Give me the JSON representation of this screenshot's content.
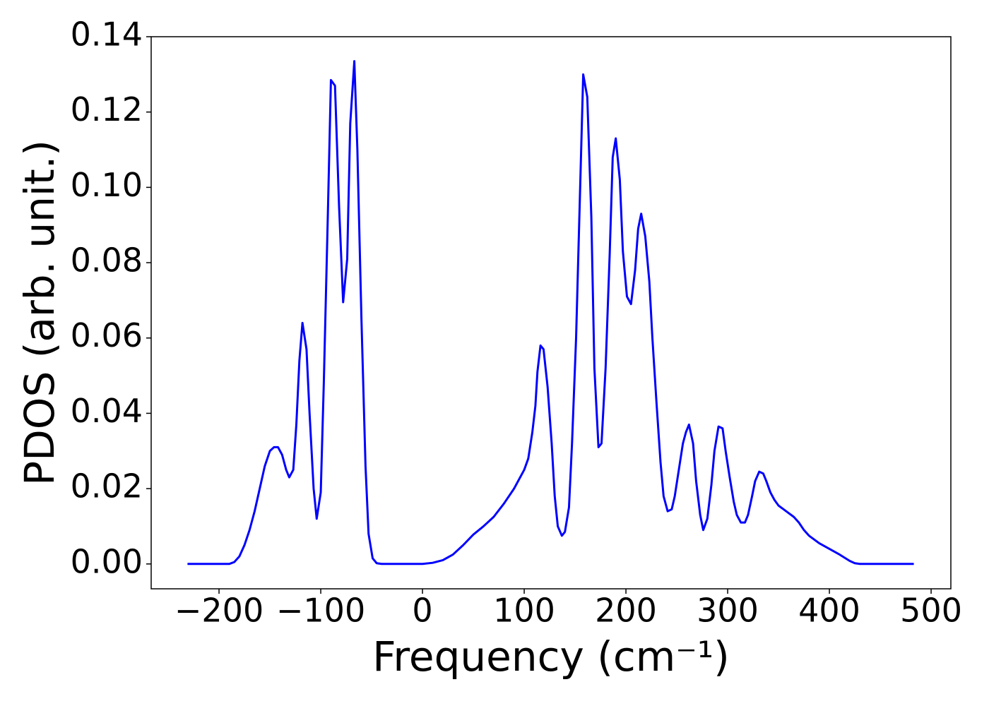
{
  "chart_data": {
    "type": "line",
    "xlabel": "Frequency (cm⁻¹)",
    "ylabel": "PDOS (arb. unit.)",
    "x": [
      -231,
      -190,
      -185,
      -180,
      -175,
      -170,
      -165,
      -160,
      -155,
      -150,
      -146,
      -142,
      -138,
      -134,
      -131,
      -127,
      -124,
      -121,
      -118,
      -114,
      -111,
      -107,
      -104,
      -100,
      -97,
      -93,
      -90,
      -86,
      -82,
      -78,
      -74,
      -71,
      -67,
      -64,
      -60,
      -56,
      -53,
      -49,
      -45,
      -40,
      0,
      10,
      20,
      30,
      40,
      50,
      60,
      70,
      80,
      90,
      100,
      104,
      108,
      111,
      113,
      116,
      119,
      123,
      127,
      130,
      133,
      137,
      140,
      144,
      147,
      151,
      155,
      158,
      162,
      166,
      169,
      173,
      176,
      180,
      184,
      187,
      190,
      194,
      197,
      201,
      205,
      209,
      212,
      215,
      219,
      223,
      226,
      230,
      234,
      237,
      241,
      245,
      248,
      252,
      256,
      259,
      262,
      266,
      269,
      273,
      276,
      280,
      284,
      287,
      291,
      295,
      298,
      302,
      306,
      309,
      313,
      317,
      320,
      324,
      327,
      331,
      335,
      338,
      342,
      346,
      350,
      355,
      360,
      365,
      370,
      375,
      380,
      390,
      400,
      410,
      420,
      425,
      430,
      483
    ],
    "series": [
      {
        "color": "#0000ff",
        "values": [
          0,
          0,
          0.0005,
          0.002,
          0.005,
          0.009,
          0.014,
          0.02,
          0.026,
          0.03,
          0.031,
          0.031,
          0.029,
          0.025,
          0.023,
          0.025,
          0.037,
          0.054,
          0.064,
          0.057,
          0.04,
          0.02,
          0.012,
          0.019,
          0.048,
          0.093,
          0.1285,
          0.127,
          0.095,
          0.0695,
          0.081,
          0.117,
          0.1335,
          0.11,
          0.065,
          0.026,
          0.008,
          0.0015,
          0.0002,
          0,
          0,
          0.0003,
          0.001,
          0.0025,
          0.005,
          0.0078,
          0.01,
          0.0125,
          0.016,
          0.02,
          0.025,
          0.028,
          0.035,
          0.042,
          0.051,
          0.058,
          0.057,
          0.047,
          0.032,
          0.018,
          0.01,
          0.0075,
          0.0085,
          0.015,
          0.032,
          0.06,
          0.1,
          0.13,
          0.124,
          0.092,
          0.052,
          0.031,
          0.032,
          0.052,
          0.082,
          0.108,
          0.113,
          0.102,
          0.083,
          0.071,
          0.069,
          0.078,
          0.089,
          0.093,
          0.087,
          0.075,
          0.06,
          0.043,
          0.027,
          0.018,
          0.014,
          0.0145,
          0.018,
          0.025,
          0.032,
          0.035,
          0.037,
          0.032,
          0.022,
          0.013,
          0.009,
          0.012,
          0.021,
          0.03,
          0.0365,
          0.036,
          0.03,
          0.023,
          0.0165,
          0.013,
          0.011,
          0.011,
          0.013,
          0.018,
          0.022,
          0.0245,
          0.024,
          0.022,
          0.019,
          0.017,
          0.0155,
          0.0145,
          0.0135,
          0.0125,
          0.011,
          0.009,
          0.0075,
          0.0055,
          0.004,
          0.0025,
          0.0008,
          0.0002,
          0,
          0
        ]
      }
    ],
    "xlim": [
      -266.7,
      519.4
    ],
    "ylim": [
      -0.0066,
      0.14
    ],
    "xticks": [
      {
        "value": -200,
        "label": "−200"
      },
      {
        "value": -100,
        "label": "−100"
      },
      0,
      100,
      200,
      300,
      400,
      500
    ],
    "yticks": [
      {
        "value": 0,
        "label": "0.00"
      },
      {
        "value": 0.02,
        "label": "0.02"
      },
      {
        "value": 0.04,
        "label": "0.04"
      },
      {
        "value": 0.06,
        "label": "0.06"
      },
      {
        "value": 0.08,
        "label": "0.08"
      },
      {
        "value": 0.1,
        "label": "0.10"
      },
      {
        "value": 0.12,
        "label": "0.12"
      },
      {
        "value": 0.14,
        "label": "0.14"
      }
    ],
    "grid": false
  }
}
